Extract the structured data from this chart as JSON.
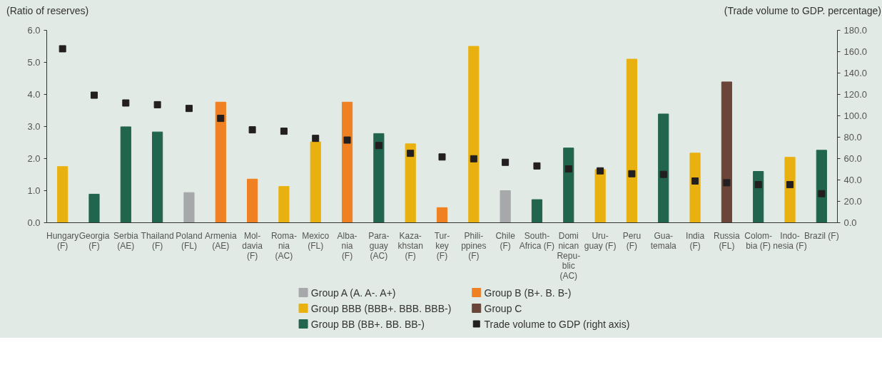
{
  "chart_data": {
    "type": "bar",
    "categories": [
      "Hungary\n(F)",
      "Georgia\n(F)",
      "Serbia\n(AE)",
      "Thailand\n(F)",
      "Poland\n(FL)",
      "Armenia\n(AE)",
      "Mol-\ndavia\n(F)",
      "Roma-\nnia\n(AC)",
      "Mexico\n(FL)",
      "Alba-\nnia\n(F)",
      "Para-\nguay\n(AC)",
      "Kaza-\nkhstan\n(F)",
      "Tur-\nkey\n(F)",
      "Phili-\nppines\n(F)",
      "Chile\n(F)",
      "South-\nAfrica (F)",
      "Domi\nnican\nRepu-\nblic\n(AC)",
      "Uru-\nguay (F)",
      "Peru\n(F)",
      "Gua-\ntemala",
      "India\n(F)",
      "Russia\n(FL)",
      "Colom-\nbia (F)",
      "Indo-\nnesia (F)",
      "Brazil (F)"
    ],
    "ylabel": "(Ratio of reserves)",
    "y2label": "(Trade volume to GDP. percentage)",
    "ylim": [
      0,
      6
    ],
    "yticks": [
      {
        "value": 0,
        "label": "0.0"
      },
      {
        "value": 1,
        "label": "1.0"
      },
      {
        "value": 2,
        "label": "2.0"
      },
      {
        "value": 3,
        "label": "3.0"
      },
      {
        "value": 4,
        "label": "4.0"
      },
      {
        "value": 5,
        "label": "5.0"
      },
      {
        "value": 6,
        "label": "6.0"
      }
    ],
    "y2lim": [
      0,
      180
    ],
    "y2ticks": [
      {
        "value": 0,
        "label": "0.0"
      },
      {
        "value": 20,
        "label": "20.0"
      },
      {
        "value": 40,
        "label": "40.0"
      },
      {
        "value": 60,
        "label": "60.0"
      },
      {
        "value": 80,
        "label": "80.0"
      },
      {
        "value": 100,
        "label": "100.0"
      },
      {
        "value": 120,
        "label": "120.0"
      },
      {
        "value": 140,
        "label": "140.0"
      },
      {
        "value": 160,
        "label": "160.0"
      },
      {
        "value": 180,
        "label": "180.0"
      }
    ],
    "legend": "bottom",
    "series": [
      {
        "name": "Group A (A. A-. A+)",
        "color": "#a7a8aa",
        "values": [
          null,
          null,
          null,
          null,
          0.94,
          null,
          null,
          null,
          null,
          null,
          null,
          null,
          null,
          null,
          1.0,
          null,
          null,
          null,
          null,
          null,
          null,
          null,
          null,
          null,
          null
        ]
      },
      {
        "name": "Group BBB (BBB+. BBB. BBB-)",
        "color": "#e9b110",
        "values": [
          1.75,
          null,
          null,
          null,
          null,
          null,
          null,
          1.13,
          2.52,
          null,
          null,
          2.46,
          null,
          5.5,
          null,
          null,
          null,
          1.66,
          5.1,
          null,
          2.17,
          null,
          null,
          2.04,
          null
        ]
      },
      {
        "name": "Group BB (BB+. BB. BB-)",
        "color": "#22654e",
        "values": [
          null,
          0.89,
          2.99,
          2.83,
          null,
          null,
          null,
          null,
          null,
          null,
          2.78,
          null,
          null,
          null,
          null,
          0.72,
          2.33,
          null,
          null,
          3.39,
          null,
          null,
          1.6,
          null,
          2.26
        ]
      },
      {
        "name": "Group B (B+. B. B-)",
        "color": "#f08122",
        "values": [
          null,
          null,
          null,
          null,
          null,
          3.76,
          1.36,
          null,
          null,
          3.76,
          null,
          null,
          0.47,
          null,
          null,
          null,
          null,
          null,
          null,
          null,
          null,
          null,
          null,
          null,
          null
        ]
      },
      {
        "name": "Group C",
        "color": "#6b4538",
        "values": [
          null,
          null,
          null,
          null,
          null,
          null,
          null,
          null,
          null,
          null,
          null,
          null,
          null,
          null,
          null,
          null,
          null,
          null,
          null,
          null,
          null,
          4.39,
          null,
          null,
          null
        ]
      },
      {
        "name": "Trade volume to GDP (right axis)",
        "color": "#231f20",
        "type": "scatter",
        "axis": "y2",
        "marker": "square",
        "values": [
          162.7,
          119.3,
          112,
          110.4,
          106.9,
          97.6,
          86.9,
          85.6,
          78.9,
          77.3,
          72.2,
          64.9,
          61.5,
          59.8,
          56.5,
          53.1,
          50.3,
          48.5,
          45.8,
          45.2,
          39.0,
          37.4,
          35.6,
          35.6,
          27.2
        ]
      }
    ]
  }
}
